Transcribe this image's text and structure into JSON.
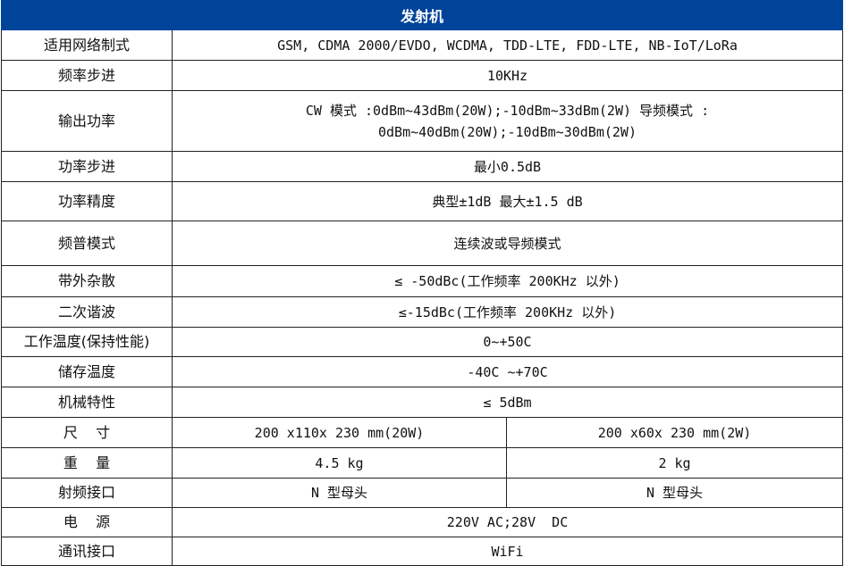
{
  "title": "发射机",
  "header_color": "#00449a",
  "rows": [
    {
      "label": "适用网络制式",
      "value": "GSM, CDMA 2000/EVDO, WCDMA, TDD-LTE, FDD-LTE, NB-IoT/LoRa"
    },
    {
      "label": "频率步进",
      "value": "10KHz"
    },
    {
      "label": "输出功率",
      "value": "CW  模式  :0dBm~43dBm(20W);-10dBm~33dBm(2W) 导频模式 :  0dBm~40dBm(20W);-10dBm~30dBm(2W)"
    },
    {
      "label": "功率步进",
      "value": "最小0.5dB"
    },
    {
      "label": "功率精度",
      "value": "典型±1dB 最大±1.5 dB"
    },
    {
      "label": "频普模式",
      "value": "连续波或导频模式"
    },
    {
      "label": "带外杂散",
      "value": "≤ -50dBc(工作频率 200KHz 以外)"
    },
    {
      "label": "二次谐波",
      "value": "≤-15dBc(工作频率 200KHz 以外)"
    },
    {
      "label": "工作温度(保持性能)",
      "value": "0~+50C"
    },
    {
      "label": "储存温度",
      "value": "-40C ~+70C"
    },
    {
      "label": "机械特性",
      "value": "≤ 5dBm"
    },
    {
      "label": "尺    寸",
      "value_a": "200 x110x 230 mm(20W)",
      "value_b": "200 x60x 230 mm(2W)"
    },
    {
      "label": "重    量",
      "value_a": "4.5 kg",
      "value_b": "2 kg"
    },
    {
      "label": "射频接口",
      "value_a": "N 型母头",
      "value_b": "N 型母头"
    },
    {
      "label": "电    源",
      "value": "220V AC;28V  DC"
    },
    {
      "label": "通讯接口",
      "value": "WiFi"
    }
  ]
}
